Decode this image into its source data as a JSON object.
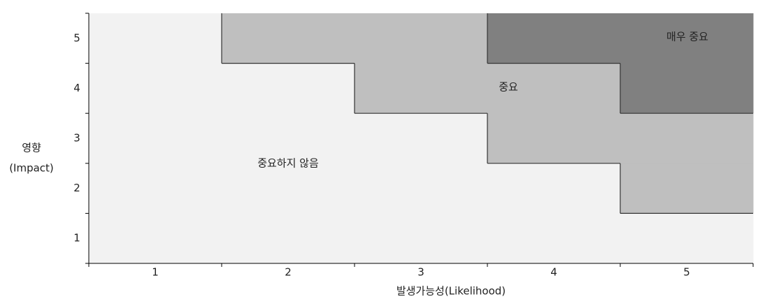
{
  "chart_data": {
    "type": "heatmap",
    "x_label": "발생가능성(Likelihood)",
    "y_label": [
      "영향",
      "(Impact)"
    ],
    "x_categories": [
      "1",
      "2",
      "3",
      "4",
      "5"
    ],
    "y_categories": [
      "5",
      "4",
      "3",
      "2",
      "1"
    ],
    "levels": [
      {
        "name": "중요하지 않음",
        "color": "#f2f2f2"
      },
      {
        "name": "중요",
        "color": "#bfbfbf"
      },
      {
        "name": "매우 중요",
        "color": "#808080"
      }
    ],
    "z": [
      [
        0,
        1,
        1,
        2,
        2
      ],
      [
        0,
        0,
        1,
        1,
        2
      ],
      [
        0,
        0,
        0,
        1,
        1
      ],
      [
        0,
        0,
        0,
        0,
        1
      ],
      [
        0,
        0,
        0,
        0,
        0
      ]
    ]
  }
}
